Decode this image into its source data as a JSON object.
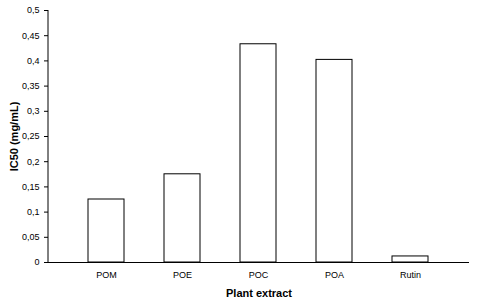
{
  "chart_data": {
    "type": "bar",
    "x_label": "Plant extract",
    "y_label": "IC50 (mg/mL)",
    "categories": [
      "POM",
      "POE",
      "POC",
      "POA",
      "Rutin"
    ],
    "values": [
      0.125,
      0.175,
      0.433,
      0.402,
      0.012
    ],
    "color": "#ffffff",
    "ylim": [
      0,
      0.5
    ],
    "yticks": [
      {
        "value": 0,
        "label": "0"
      },
      {
        "value": 0.05,
        "label": "0,05"
      },
      {
        "value": 0.1,
        "label": "0,1"
      },
      {
        "value": 0.15,
        "label": "0,15"
      },
      {
        "value": 0.2,
        "label": "0,2"
      },
      {
        "value": 0.25,
        "label": "0,25"
      },
      {
        "value": 0.3,
        "label": "0,3"
      },
      {
        "value": 0.35,
        "label": "0,35"
      },
      {
        "value": 0.4,
        "label": "0,4"
      },
      {
        "value": 0.45,
        "label": "0,45"
      },
      {
        "value": 0.5,
        "label": "0,5"
      }
    ],
    "grid": false
  }
}
